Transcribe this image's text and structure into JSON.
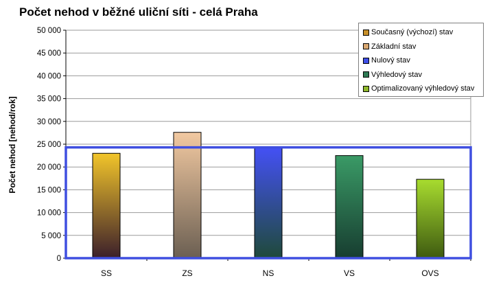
{
  "title": "Počet nehod v běžné uliční síti - celá Praha",
  "chart_data": {
    "type": "bar",
    "title": "Počet nehod v běžné uliční síti - celá Praha",
    "ylabel": "Počet nehod  [nehod/rok]",
    "xlabel": "",
    "categories": [
      "SS",
      "ZS",
      "NS",
      "VS",
      "OVS"
    ],
    "values": [
      23000,
      27600,
      24300,
      22500,
      17300
    ],
    "ylim": [
      0,
      50000
    ],
    "yticks": [
      "0",
      "5 000",
      "10 000",
      "15 000",
      "20 000",
      "25 000",
      "30 000",
      "35 000",
      "40 000",
      "45 000",
      "50 000"
    ],
    "grid": true,
    "legend_position": "top-right",
    "legend": [
      {
        "label": "Současný (výchozí) stav",
        "color": "#c8902a"
      },
      {
        "label": "Základní stav",
        "color": "#d9a872"
      },
      {
        "label": "Nulový stav",
        "color": "#3f4fe8"
      },
      {
        "label": "Výhledový stav",
        "color": "#2e7a54"
      },
      {
        "label": "Optimalizovaný výhledový stav",
        "color": "#8fb82c"
      }
    ],
    "bar_gradients": [
      [
        "#f2c52a",
        "#3b1f2a"
      ],
      [
        "#f2c9a1",
        "#6b5f52"
      ],
      [
        "#4450f5",
        "#1f4a3a"
      ],
      [
        "#3a9a66",
        "#173d30"
      ],
      [
        "#a8dc2f",
        "#3e5a10"
      ]
    ],
    "highlight_rect_color": "#3f4fe0"
  }
}
